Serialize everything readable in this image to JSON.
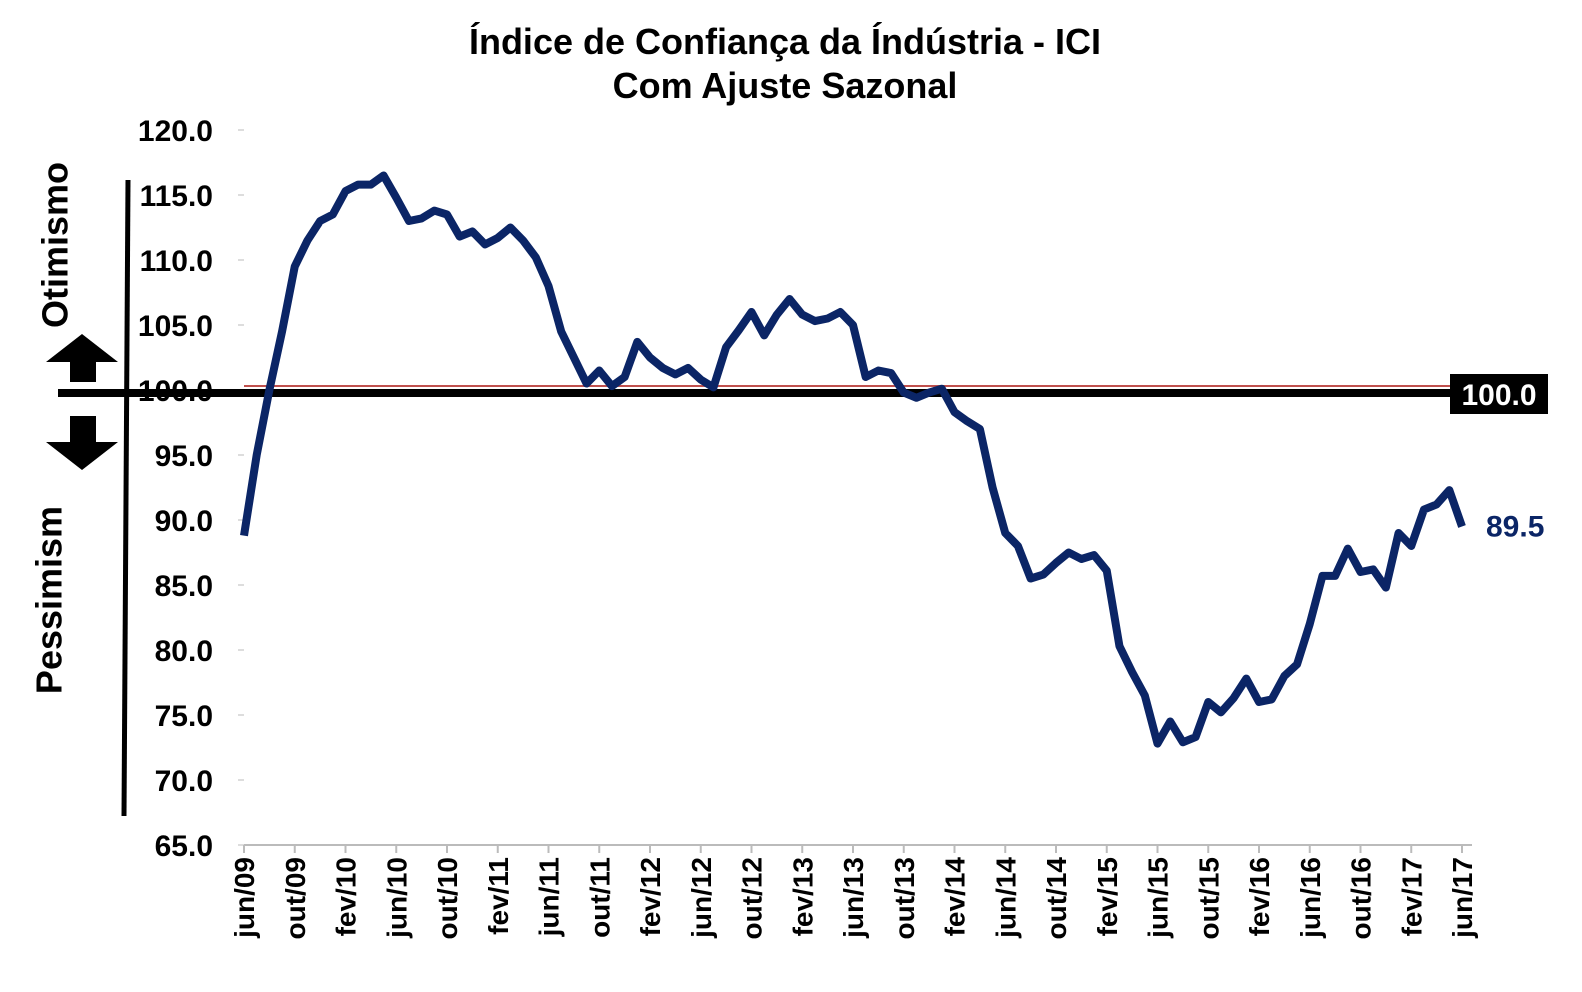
{
  "chart_data": {
    "type": "line",
    "title": "Índice de Confiança da Índústria - ICI",
    "subtitle": "Com Ajuste Sazonal",
    "annotations": {
      "upper": "Otimismo",
      "lower": "Pessimism"
    },
    "categories": [
      "jun/09",
      null,
      null,
      null,
      "out/09",
      null,
      null,
      null,
      "fev/10",
      null,
      null,
      null,
      "jun/10",
      null,
      null,
      null,
      "out/10",
      null,
      null,
      null,
      "fev/11",
      null,
      null,
      null,
      "jun/11",
      null,
      null,
      null,
      "out/11",
      null,
      null,
      null,
      "fev/12",
      null,
      null,
      null,
      "jun/12",
      null,
      null,
      null,
      "out/12",
      null,
      null,
      null,
      "fev/13",
      null,
      null,
      null,
      "jun/13",
      null,
      null,
      null,
      "out/13",
      null,
      null,
      null,
      "fev/14",
      null,
      null,
      null,
      "jun/14",
      null,
      null,
      null,
      "out/14",
      null,
      null,
      null,
      "fev/15",
      null,
      null,
      null,
      "jun/15",
      null,
      null,
      null,
      "out/15",
      null,
      null,
      null,
      "fev/16",
      null,
      null,
      null,
      "jun/16",
      null,
      null,
      null,
      "out/16",
      null,
      null,
      null,
      "fev/17",
      null,
      null,
      null,
      "jun/17"
    ],
    "values": [
      88.8,
      95,
      100,
      104.5,
      109.5,
      111.5,
      113,
      113.5,
      115.3,
      115.8,
      115.8,
      116.5,
      114.8,
      113,
      113.2,
      113.8,
      113.5,
      111.8,
      112.2,
      111.2,
      111.7,
      112.5,
      111.5,
      110.2,
      108,
      104.5,
      102.5,
      100.5,
      101.5,
      100.3,
      101,
      103.7,
      102.5,
      101.7,
      101.2,
      101.7,
      100.8,
      100.2,
      103.3,
      104.6,
      106,
      104.2,
      105.8,
      107,
      105.8,
      105.3,
      105.5,
      106,
      105,
      101,
      101.5,
      101.3,
      99.8,
      99.4,
      99.8,
      100.1,
      98.3,
      97.6,
      97,
      92.5,
      89,
      88,
      85.5,
      85.8,
      86.7,
      87.5,
      87,
      87.3,
      86.1,
      80.3,
      78.3,
      76.5,
      72.8,
      74.5,
      72.9,
      73.3,
      76,
      75.2,
      76.3,
      77.8,
      76,
      76.2,
      78,
      78.9,
      82,
      85.7,
      85.7,
      87.8,
      86,
      86.2,
      84.8,
      89,
      88,
      90.8,
      91.2,
      92.3,
      89.5
    ],
    "value_labels": [
      null,
      null,
      null,
      null,
      null,
      null,
      null,
      null,
      null,
      null,
      null,
      null,
      null,
      null,
      null,
      null,
      null,
      null,
      null,
      null,
      null,
      null,
      null,
      null,
      null,
      null,
      null,
      null,
      null,
      null,
      null,
      null,
      null,
      null,
      null,
      null,
      null,
      null,
      null,
      null,
      null,
      null,
      null,
      null,
      null,
      null,
      null,
      null,
      null,
      null,
      null,
      null,
      null,
      null,
      null,
      null,
      null,
      null,
      null,
      null,
      null,
      null,
      null,
      null,
      null,
      null,
      null,
      null,
      null,
      null,
      null,
      null,
      null,
      null,
      null,
      null,
      null,
      null,
      null,
      null,
      null,
      null,
      null,
      null,
      null,
      null,
      null,
      null,
      null,
      null,
      null,
      null,
      null,
      null,
      null,
      null,
      "89.5"
    ],
    "color": "#0b2566",
    "reference_line": {
      "value": 100,
      "label": "100.0",
      "color": "#000000"
    },
    "ylim": [
      65,
      120
    ],
    "yticks": [
      {
        "value": 65,
        "label": "65.0"
      },
      {
        "value": 70,
        "label": "70.0"
      },
      {
        "value": 75,
        "label": "75.0"
      },
      {
        "value": 80,
        "label": "80.0"
      },
      {
        "value": 85,
        "label": "85.0"
      },
      {
        "value": 90,
        "label": "90.0"
      },
      {
        "value": 95,
        "label": "95.0"
      },
      {
        "value": 100,
        "label": "100.0"
      },
      {
        "value": 105,
        "label": "105.0"
      },
      {
        "value": 110,
        "label": "110.0"
      },
      {
        "value": 115,
        "label": "115.0"
      },
      {
        "value": 120,
        "label": "120.0"
      }
    ],
    "grid": false
  }
}
